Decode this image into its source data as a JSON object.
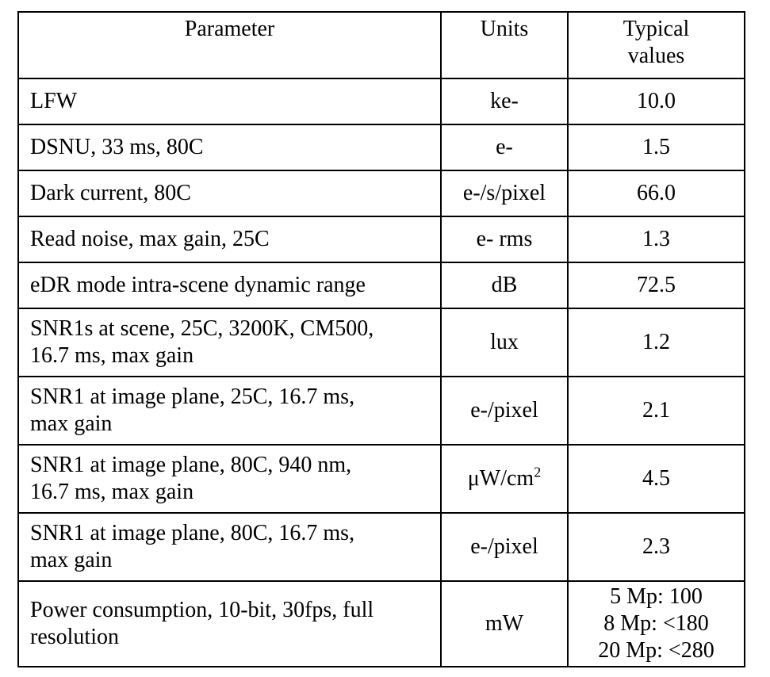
{
  "table": {
    "headers": {
      "parameter": "Parameter",
      "units": "Units",
      "typical_line1": "Typical",
      "typical_line2": "values"
    },
    "rows": [
      {
        "parameter_lines": [
          "LFW"
        ],
        "units": "ke-",
        "value_lines": [
          "10.0"
        ]
      },
      {
        "parameter_lines": [
          "DSNU, 33 ms, 80C"
        ],
        "units": "e-",
        "value_lines": [
          "1.5"
        ]
      },
      {
        "parameter_lines": [
          "Dark current, 80C"
        ],
        "units": "e-/s/pixel",
        "value_lines": [
          "66.0"
        ]
      },
      {
        "parameter_lines": [
          "Read noise, max gain, 25C"
        ],
        "units": "e- rms",
        "value_lines": [
          "1.3"
        ]
      },
      {
        "parameter_lines": [
          "eDR mode intra-scene dynamic range"
        ],
        "units": "dB",
        "value_lines": [
          "72.5"
        ]
      },
      {
        "parameter_lines": [
          "SNR1s at scene, 25C, 3200K, CM500,",
          "16.7 ms, max gain"
        ],
        "units": "lux",
        "value_lines": [
          "1.2"
        ]
      },
      {
        "parameter_lines": [
          "SNR1 at image plane, 25C, 16.7 ms,",
          "max gain"
        ],
        "units": "e-/pixel",
        "value_lines": [
          "2.1"
        ]
      },
      {
        "parameter_lines": [
          "SNR1 at image plane, 80C, 940 nm,",
          "16.7 ms, max gain"
        ],
        "units": "μW/cm",
        "units_sup": "2",
        "value_lines": [
          "4.5"
        ]
      },
      {
        "parameter_lines": [
          "SNR1 at image plane, 80C, 16.7 ms,",
          "max gain"
        ],
        "units": "e-/pixel",
        "value_lines": [
          "2.3"
        ]
      },
      {
        "parameter_lines": [
          "Power consumption, 10-bit, 30fps, full",
          "resolution"
        ],
        "units": "mW",
        "value_lines": [
          "5 Mp: 100",
          "8 Mp: <180",
          "20 Mp: <280"
        ]
      }
    ]
  }
}
